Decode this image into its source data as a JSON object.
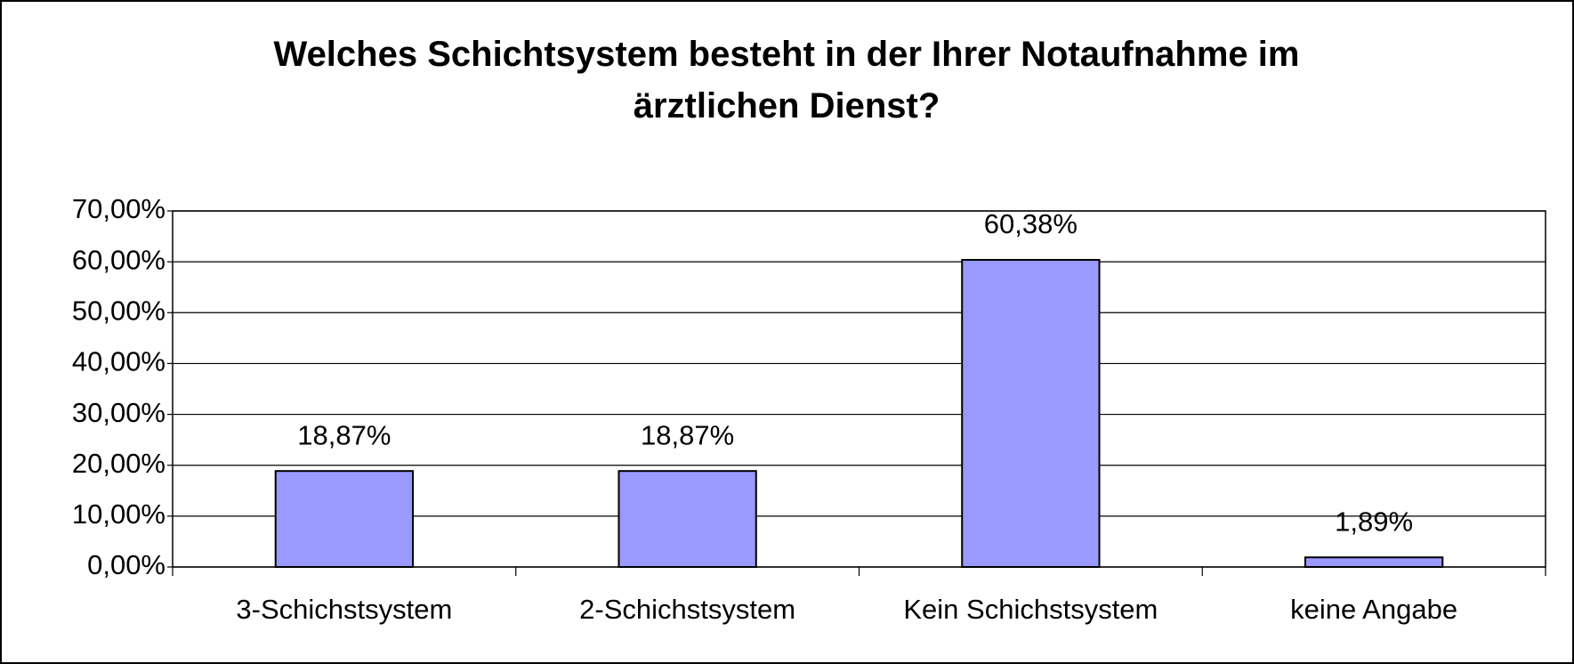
{
  "chart_data": {
    "type": "bar",
    "title": "Welches Schichtsystem besteht in der Ihrer Notaufnahme im ärztlichen Dienst?",
    "categories": [
      "3-Schichstsystem",
      "2-Schichstsystem",
      "Kein Schichstsystem",
      "keine Angabe"
    ],
    "values": [
      18.87,
      18.87,
      60.38,
      1.89
    ],
    "value_labels": [
      "18,87%",
      "18,87%",
      "60,38%",
      "1,89%"
    ],
    "color": "#9999ff",
    "ylim": [
      0,
      70
    ],
    "yticks": [
      {
        "value": 0,
        "label": "0,00%"
      },
      {
        "value": 10,
        "label": "10,00%"
      },
      {
        "value": 20,
        "label": "20,00%"
      },
      {
        "value": 30,
        "label": "30,00%"
      },
      {
        "value": 40,
        "label": "40,00%"
      },
      {
        "value": 50,
        "label": "50,00%"
      },
      {
        "value": 60,
        "label": "60,00%"
      },
      {
        "value": 70,
        "label": "70,00%"
      }
    ],
    "grid": true
  }
}
